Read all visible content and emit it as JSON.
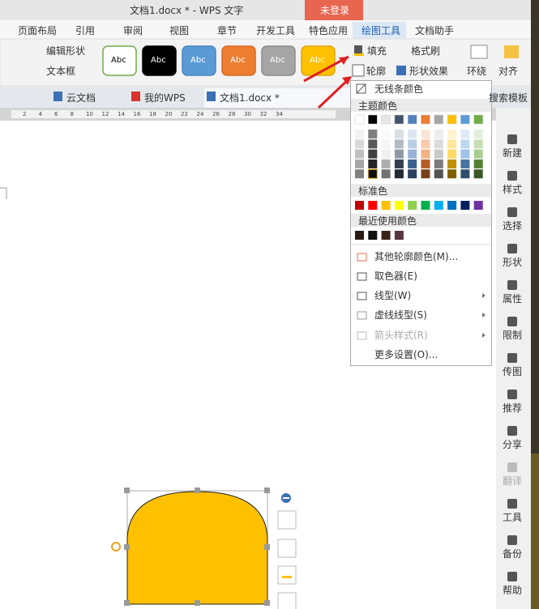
{
  "title_bar": {
    "title": "文档1.docx * - WPS 文字",
    "login": "未登录"
  },
  "menu_tabs": [
    "页面布局",
    "引用",
    "审阅",
    "视图",
    "章节",
    "开发工具",
    "特色应用",
    "绘图工具",
    "文档助手"
  ],
  "ribbon": {
    "edit_shape": "编辑形状",
    "text_box": "文本框",
    "styles": [
      "Abc",
      "Abc",
      "Abc",
      "Abc",
      "Abc",
      "Abc"
    ],
    "fill": "填充",
    "format_painter": "格式刷",
    "outline": "轮廓",
    "shape_effect": "形状效果",
    "wrap": "环绕",
    "align": "对齐"
  },
  "doc_tabs": [
    "云文档",
    "我的WPS",
    "文档1.docx *"
  ],
  "search_template": "搜索模板",
  "ruler": [
    2,
    4,
    6,
    8,
    10,
    12,
    14,
    16,
    18,
    20,
    22,
    24,
    26,
    28,
    30,
    32,
    34
  ],
  "outline_menu": {
    "no_line": "无线条颜色",
    "theme_colors": "主题颜色",
    "standard_colors": "标准色",
    "recent_colors": "最近使用颜色",
    "items": [
      "其他轮廓颜色(M)...",
      "取色器(E)",
      "线型(W)",
      "虚线线型(S)",
      "箭头样式(R)",
      "更多设置(O)..."
    ]
  },
  "sidebar": [
    "新建",
    "样式",
    "选择",
    "形状",
    "属性",
    "限制",
    "传图",
    "推荐",
    "分享",
    "翻译",
    "工具",
    "备份",
    "帮助"
  ]
}
